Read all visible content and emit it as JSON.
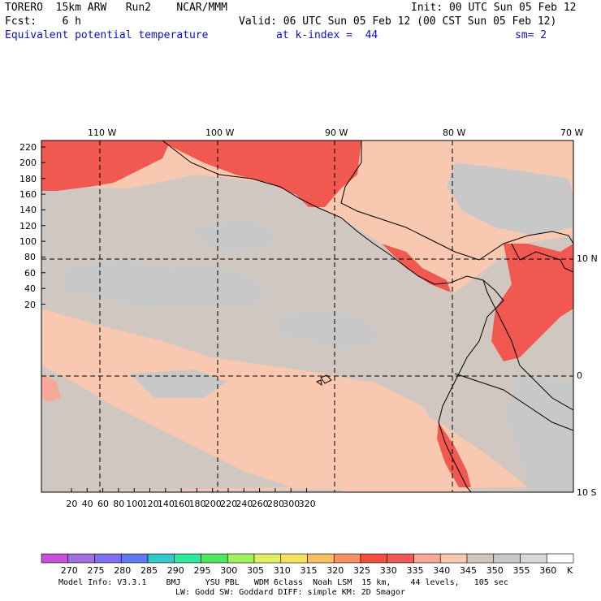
{
  "header": {
    "model": "TORERO  15km ARW   Run2    NCAR/MMM",
    "init": "Init: 00 UTC Sun 05 Feb 12",
    "fcst": "Fcst:    6 h",
    "valid": "Valid: 06 UTC Sun 05 Feb 12 (00 CST Sun 05 Feb 12)",
    "field": "Equivalent potential temperature",
    "level": "at k-index =  44",
    "smooth": "sm= 2"
  },
  "map": {
    "lon_labels": [
      "110 W",
      "100 W",
      "90 W",
      "80 W",
      "70 W"
    ],
    "lat_labels": [
      "10 N",
      "0",
      "10 S"
    ],
    "y_ticks": [
      "220",
      "200",
      "180",
      "160",
      "140",
      "120",
      "100",
      "80",
      "60",
      "40",
      "20"
    ],
    "x_ticks": [
      "20",
      "40",
      "60",
      "80",
      "100",
      "120",
      "140",
      "160",
      "180",
      "200",
      "220",
      "240",
      "260",
      "280",
      "300",
      "320"
    ]
  },
  "colorbar": {
    "labels": [
      "270",
      "275",
      "280",
      "285",
      "290",
      "295",
      "300",
      "305",
      "310",
      "315",
      "320",
      "325",
      "330",
      "335",
      "340",
      "345",
      "350",
      "355",
      "360"
    ],
    "unit": "K",
    "colors": [
      "#c850d8",
      "#a070e0",
      "#8070f0",
      "#6078f0",
      "#30c8c8",
      "#30e8a0",
      "#50e860",
      "#a0f060",
      "#e0f060",
      "#f8e060",
      "#f8c060",
      "#f89060",
      "#f05040",
      "#f05858",
      "#f8a898",
      "#f8c8b0",
      "#d0c8c0",
      "#c8c8c8",
      "#d8d8d8",
      "#ffffff"
    ]
  },
  "footer": {
    "line1": "Model Info: V3.3.1    BMJ     YSU PBL   WDM 6class  Noah LSM  15 km,    44 levels,   105 sec",
    "line2": "LW: Godd SW: Goddard DIFF: simple KM: 2D Smagor"
  }
}
